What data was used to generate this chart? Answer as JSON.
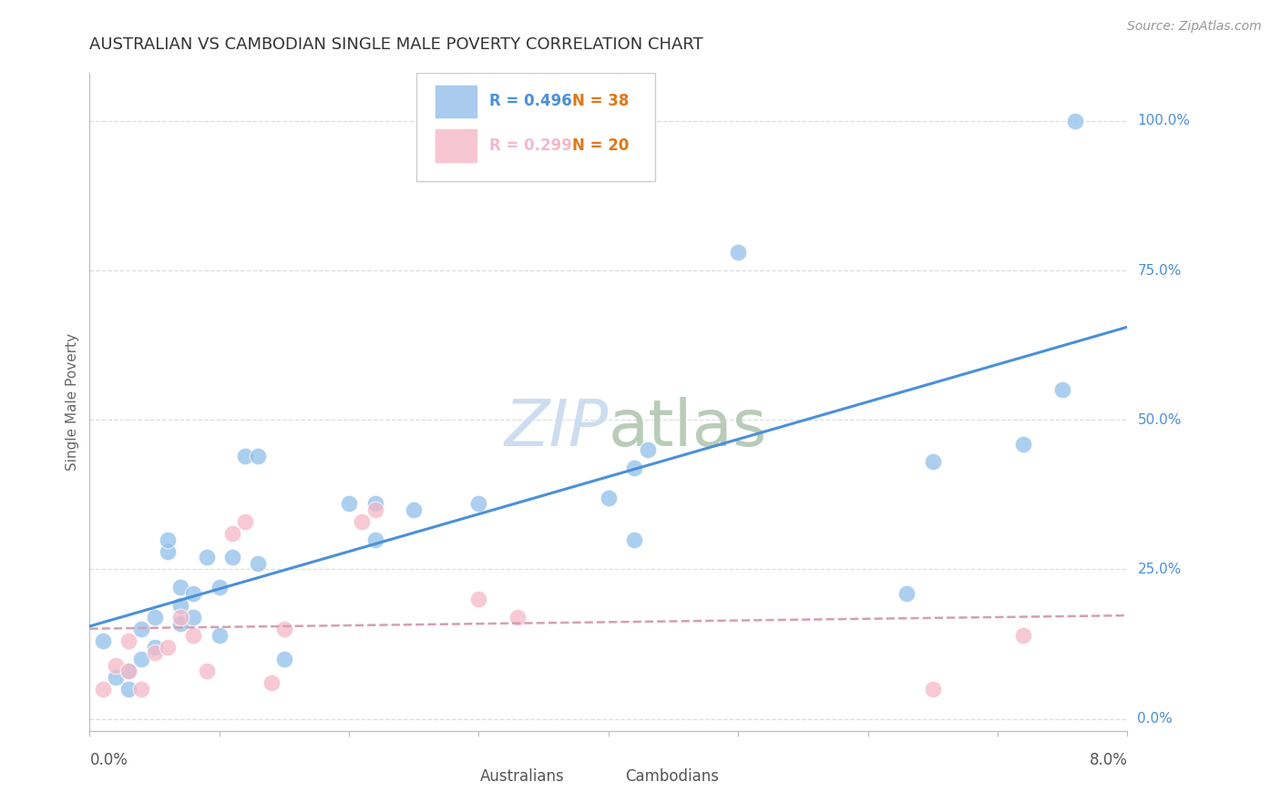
{
  "title": "AUSTRALIAN VS CAMBODIAN SINGLE MALE POVERTY CORRELATION CHART",
  "source": "Source: ZipAtlas.com",
  "ylabel": "Single Male Poverty",
  "ytick_values": [
    0.0,
    0.25,
    0.5,
    0.75,
    1.0
  ],
  "ytick_labels": [
    "0.0%",
    "25.0%",
    "50.0%",
    "75.0%",
    "100.0%"
  ],
  "xlim": [
    0.0,
    0.08
  ],
  "ylim": [
    -0.02,
    1.08
  ],
  "aus_color": "#92bfea",
  "cam_color": "#f5b8c8",
  "aus_line_color": "#4a90d9",
  "cam_line_color": "#d4a0b0",
  "ytick_label_color": "#4a90d9",
  "watermark_color": "#ccddf0",
  "background_color": "#ffffff",
  "grid_color": "#dddddd",
  "title_color": "#333333",
  "source_color": "#999999",
  "axis_label_color": "#666666",
  "bottom_label_color": "#555555",
  "australians_x": [
    0.001,
    0.002,
    0.003,
    0.003,
    0.004,
    0.004,
    0.005,
    0.005,
    0.006,
    0.006,
    0.007,
    0.007,
    0.007,
    0.008,
    0.008,
    0.009,
    0.01,
    0.01,
    0.011,
    0.012,
    0.013,
    0.013,
    0.015,
    0.02,
    0.022,
    0.022,
    0.025,
    0.03,
    0.04,
    0.042,
    0.042,
    0.043,
    0.05,
    0.063,
    0.065,
    0.072,
    0.075,
    0.076
  ],
  "australians_y": [
    0.13,
    0.07,
    0.08,
    0.05,
    0.1,
    0.15,
    0.12,
    0.17,
    0.28,
    0.3,
    0.22,
    0.19,
    0.16,
    0.17,
    0.21,
    0.27,
    0.22,
    0.14,
    0.27,
    0.44,
    0.44,
    0.26,
    0.1,
    0.36,
    0.36,
    0.3,
    0.35,
    0.36,
    0.37,
    0.3,
    0.42,
    0.45,
    0.78,
    0.21,
    0.43,
    0.46,
    0.55,
    1.0
  ],
  "cambodians_x": [
    0.001,
    0.002,
    0.003,
    0.003,
    0.004,
    0.005,
    0.006,
    0.007,
    0.008,
    0.009,
    0.011,
    0.012,
    0.014,
    0.015,
    0.021,
    0.022,
    0.03,
    0.033,
    0.065,
    0.072
  ],
  "cambodians_y": [
    0.05,
    0.09,
    0.08,
    0.13,
    0.05,
    0.11,
    0.12,
    0.17,
    0.14,
    0.08,
    0.31,
    0.33,
    0.06,
    0.15,
    0.33,
    0.35,
    0.2,
    0.17,
    0.05,
    0.14
  ]
}
